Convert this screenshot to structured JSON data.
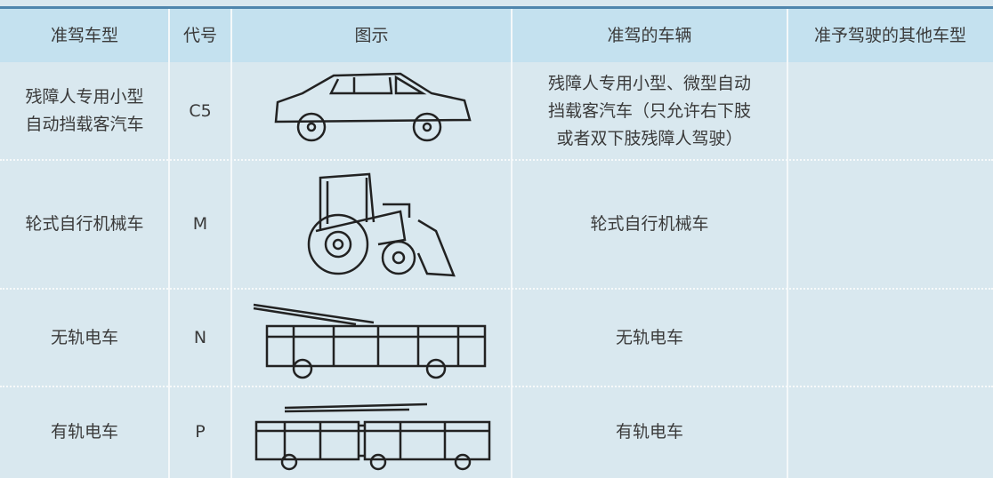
{
  "table": {
    "header": [
      "准驾车型",
      "代号",
      "图示",
      "准驾的车辆",
      "准予驾驶的其他车型"
    ],
    "rows": [
      {
        "type": [
          "残障人专用小型",
          "自动挡载客汽车"
        ],
        "code": "C5",
        "vehicles": [
          "残障人专用小型、微型自动",
          "挡载客汽车（只允许右下肢",
          "或者双下肢残障人驾驶）"
        ]
      },
      {
        "type": [
          "轮式自行机械车"
        ],
        "code": "M",
        "vehicles": [
          "轮式自行机械车"
        ]
      },
      {
        "type": [
          "无轨电车"
        ],
        "code": "N",
        "vehicles": [
          "无轨电车"
        ]
      },
      {
        "type": [
          "有轨电车"
        ],
        "code": "P",
        "vehicles": [
          "有轨电车"
        ]
      }
    ]
  }
}
